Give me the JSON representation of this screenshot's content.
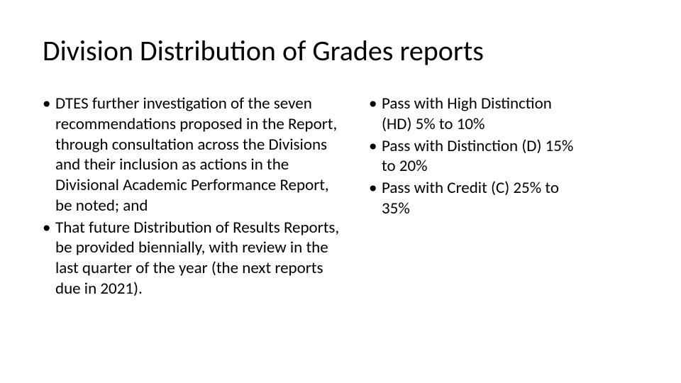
{
  "slide": {
    "title": "Division Distribution of Grades reports",
    "left_column": {
      "items": [
        "DTES  further investigation of the seven recommendations proposed in the Report, through consultation across the Divisions and their inclusion as actions in the Divisional Academic Performance Report, be noted; and",
        "That future Distribution of Results Reports, be provided biennially, with review in the last quarter of the year (the next reports due in 2021)."
      ]
    },
    "right_column": {
      "items": [
        "Pass with High Distinction (HD) 5% to 10%",
        "Pass with Distinction (D) 15% to 20%",
        "Pass with Credit (C) 25% to 35%"
      ]
    }
  },
  "styling": {
    "background_color": "#ffffff",
    "text_color": "#000000",
    "title_fontsize": 40,
    "body_fontsize": 23,
    "font_family": "Calibri",
    "title_weight": 400,
    "body_line_height": 1.25,
    "bullet_char": "•",
    "slide_width": 960,
    "slide_height": 540,
    "left_col_width": 430,
    "right_col_width": 300,
    "column_gap": 30
  }
}
